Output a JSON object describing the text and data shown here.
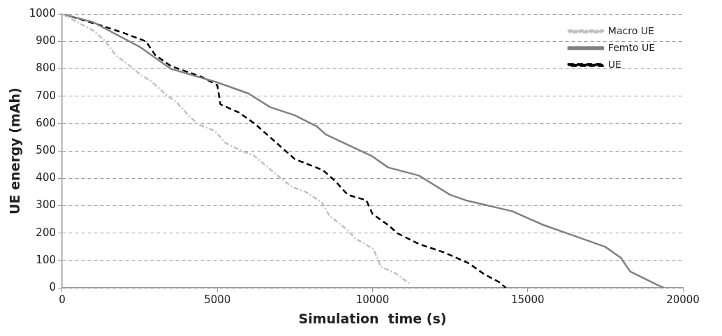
{
  "chart_data": {
    "type": "line",
    "xlabel": "Simulation  time (s)",
    "ylabel": "UE energy (mAh)",
    "xlim": [
      0,
      20000
    ],
    "xticks": [
      0,
      5000,
      10000,
      15000,
      20000
    ],
    "ylim": [
      0,
      1000
    ],
    "yticks": [
      0,
      100,
      200,
      300,
      400,
      500,
      600,
      700,
      800,
      900,
      1000
    ],
    "grid": "y",
    "legend": "top right",
    "marker": "none",
    "series": [
      {
        "name": "Macro UE",
        "color": "#c0c0c0",
        "line_style": "dashdot",
        "x": [
          0,
          1020,
          1380,
          1730,
          2090,
          2510,
          2870,
          3340,
          3700,
          4100,
          4410,
          4930,
          5240,
          5760,
          6170,
          6640,
          7070,
          7420,
          7850,
          8370,
          8610,
          9200,
          9440,
          10030,
          10270,
          10750,
          11200
        ],
        "values": [
          1000,
          938,
          902,
          849,
          819,
          780,
          754,
          706,
          677,
          626,
          596,
          573,
          531,
          501,
          484,
          439,
          398,
          368,
          350,
          312,
          264,
          211,
          181,
          142,
          77,
          53,
          15
        ]
      },
      {
        "name": "Femto UE",
        "color": "#808080",
        "line_style": "solid",
        "x": [
          0,
          1000,
          2500,
          3500,
          5000,
          6000,
          6700,
          7500,
          8200,
          8500,
          10000,
          10500,
          11500,
          12500,
          13000,
          14500,
          15500,
          16500,
          17500,
          18000,
          18300,
          19200,
          19400
        ],
        "values": [
          1000,
          970,
          880,
          800,
          750,
          710,
          660,
          630,
          590,
          560,
          480,
          440,
          410,
          340,
          320,
          280,
          230,
          190,
          150,
          110,
          60,
          10,
          0
        ]
      },
      {
        "name": "UE",
        "color": "#000000",
        "line_style": "dashed",
        "x": [
          0,
          1200,
          2000,
          2700,
          3000,
          3500,
          4500,
          5000,
          5100,
          5700,
          6200,
          6700,
          7200,
          7500,
          8400,
          8800,
          9200,
          9800,
          10000,
          10500,
          10800,
          11500,
          12300,
          13100,
          13600,
          14100,
          14300
        ],
        "values": [
          1000,
          960,
          930,
          900,
          850,
          810,
          770,
          740,
          670,
          640,
          600,
          550,
          500,
          470,
          430,
          390,
          340,
          320,
          270,
          230,
          200,
          160,
          130,
          90,
          50,
          20,
          0
        ]
      }
    ]
  }
}
